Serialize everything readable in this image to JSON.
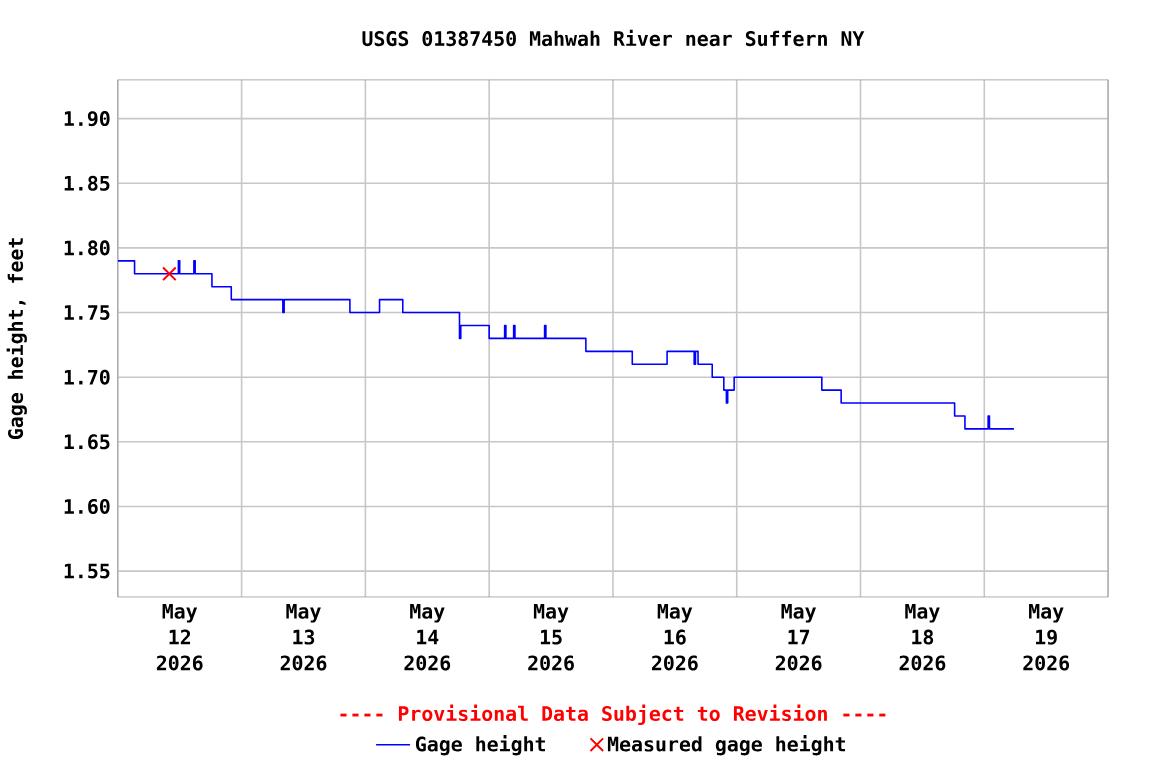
{
  "chart_data": {
    "type": "step",
    "title": "USGS 01387450 Mahwah River near Suffern NY",
    "ylabel": "Gage height, feet",
    "annotations": [
      "---- Provisional Data Subject to Revision ----"
    ],
    "xlim": [
      "2026-05-12T00:00",
      "2026-05-20T00:00"
    ],
    "xticks": [
      {
        "value": "2026-05-12T00:00",
        "label": null
      },
      {
        "value": "2026-05-13T00:00",
        "label": null
      },
      {
        "value": "2026-05-14T00:00",
        "label": null
      },
      {
        "value": "2026-05-15T00:00",
        "label": null
      },
      {
        "value": "2026-05-16T00:00",
        "label": null
      },
      {
        "value": "2026-05-17T00:00",
        "label": null
      },
      {
        "value": "2026-05-18T00:00",
        "label": null
      },
      {
        "value": "2026-05-19T00:00",
        "label": null
      },
      {
        "value": "2026-05-20T00:00",
        "label": null
      },
      {
        "value": "2026-05-12T12:00",
        "label": "May 12 2026"
      },
      {
        "value": "2026-05-13T12:00",
        "label": "May 13 2026"
      },
      {
        "value": "2026-05-14T12:00",
        "label": "May 14 2026"
      },
      {
        "value": "2026-05-15T12:00",
        "label": "May 15 2026"
      },
      {
        "value": "2026-05-16T12:00",
        "label": "May 16 2026"
      },
      {
        "value": "2026-05-17T12:00",
        "label": "May 17 2026"
      },
      {
        "value": "2026-05-18T12:00",
        "label": "May 18 2026"
      },
      {
        "value": "2026-05-19T12:00",
        "label": "May 19 2026"
      }
    ],
    "ylim": [
      1.53,
      1.93
    ],
    "yticks": [
      1.55,
      {
        "value": 1.6,
        "label": "1.60"
      },
      1.65,
      {
        "value": 1.7,
        "label": "1.70"
      },
      1.75,
      {
        "value": 1.8,
        "label": "1.80"
      },
      1.85,
      {
        "value": 1.9,
        "label": "1.90"
      }
    ],
    "grid": true,
    "legend": "bottom",
    "series": [
      {
        "name": "Gage height",
        "color": "#0000ff",
        "marker": "none",
        "x": [
          "2026-05-12T00:00",
          "2026-05-12T03:15",
          "2026-05-12T11:45",
          "2026-05-12T12:00",
          "2026-05-12T14:45",
          "2026-05-12T15:00",
          "2026-05-12T18:15",
          "2026-05-12T22:00",
          "2026-05-13T08:00",
          "2026-05-13T08:15",
          "2026-05-13T21:00",
          "2026-05-14T02:45",
          "2026-05-14T07:15",
          "2026-05-14T18:15",
          "2026-05-14T18:30",
          "2026-05-15T00:00",
          "2026-05-15T03:00",
          "2026-05-15T03:15",
          "2026-05-15T04:45",
          "2026-05-15T05:00",
          "2026-05-15T10:45",
          "2026-05-15T11:00",
          "2026-05-15T18:45",
          "2026-05-16T03:45",
          "2026-05-16T10:30",
          "2026-05-16T15:45",
          "2026-05-16T16:00",
          "2026-05-16T16:30",
          "2026-05-16T19:15",
          "2026-05-16T21:30",
          "2026-05-16T22:00",
          "2026-05-16T22:15",
          "2026-05-16T23:30",
          "2026-05-17T16:30",
          "2026-05-17T20:15",
          "2026-05-18T18:15",
          "2026-05-18T20:15",
          "2026-05-19T00:45",
          "2026-05-19T01:00",
          "2026-05-19T05:45"
        ],
        "values": [
          1.79,
          1.78,
          1.79,
          1.78,
          1.79,
          1.78,
          1.77,
          1.76,
          1.75,
          1.76,
          1.75,
          1.76,
          1.75,
          1.73,
          1.74,
          1.73,
          1.74,
          1.73,
          1.74,
          1.73,
          1.74,
          1.73,
          1.72,
          1.71,
          1.72,
          1.71,
          1.72,
          1.71,
          1.7,
          1.69,
          1.68,
          1.69,
          1.7,
          1.69,
          1.68,
          1.67,
          1.66,
          1.67,
          1.66,
          1.66
        ]
      },
      {
        "name": "Measured gage height",
        "type": "scatter",
        "color": "#ff0000",
        "marker": "cross",
        "x": [
          "2026-05-12T10:00"
        ],
        "values": [
          1.78
        ]
      }
    ]
  }
}
